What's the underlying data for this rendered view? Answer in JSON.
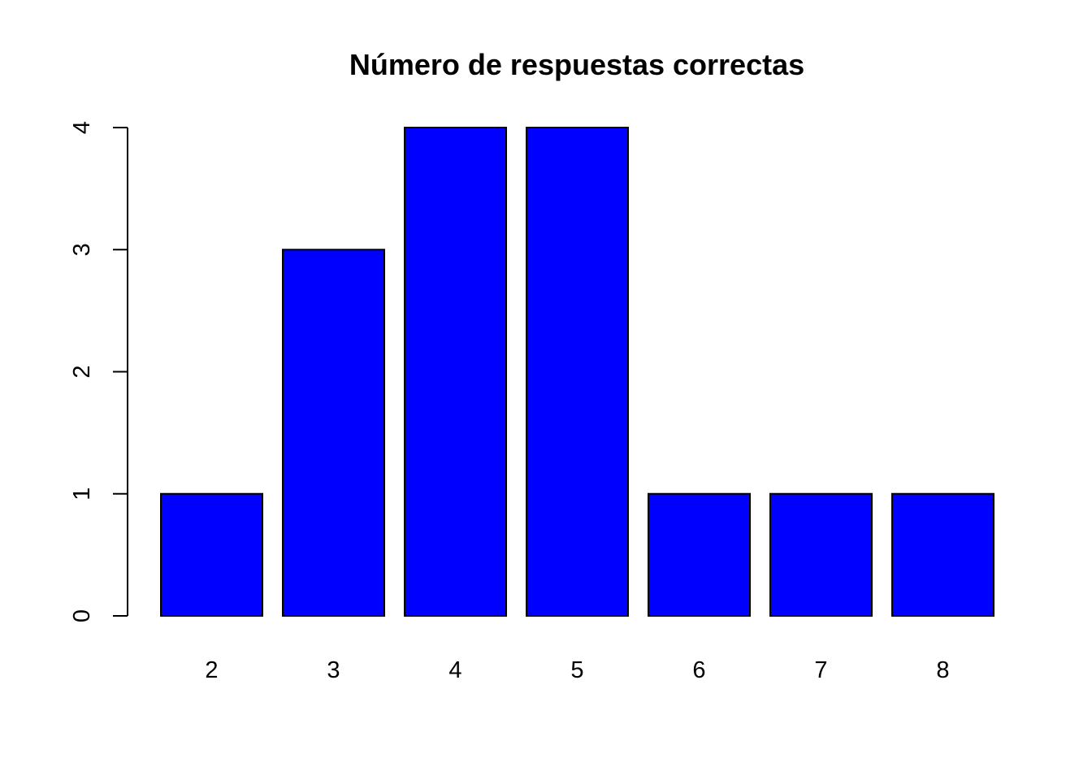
{
  "chart_data": {
    "type": "bar",
    "title": "Número de respuestas correctas",
    "categories": [
      "2",
      "3",
      "4",
      "5",
      "6",
      "7",
      "8"
    ],
    "values": [
      1,
      3,
      4,
      4,
      1,
      1,
      1
    ],
    "xlabel": "",
    "ylabel": "",
    "ylim": [
      0,
      4
    ],
    "yticks": [
      0,
      1,
      2,
      3,
      4
    ],
    "ytick_labels": [
      "0",
      "1",
      "2",
      "3",
      "4"
    ],
    "grid": false,
    "bar_color": "#0000ff",
    "bar_border_color": "#000000"
  }
}
